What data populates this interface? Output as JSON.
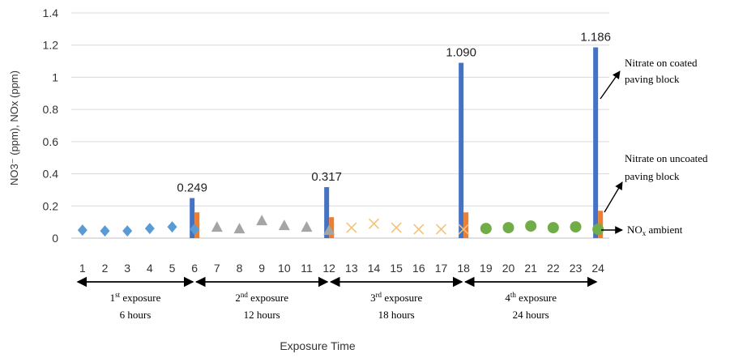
{
  "chart_data": {
    "type": "bar",
    "xlabel": "Exposure Time",
    "ylabel": "NO3⁻ (ppm), NOx (ppm)",
    "ylim": [
      0,
      1.4
    ],
    "yticks": [
      "0",
      "0.2",
      "0.4",
      "0.6",
      "0.8",
      "1",
      "1.2",
      "1.4"
    ],
    "grid": true,
    "x": [
      1,
      2,
      3,
      4,
      5,
      6,
      7,
      8,
      9,
      10,
      11,
      12,
      13,
      14,
      15,
      16,
      17,
      18,
      19,
      20,
      21,
      22,
      23,
      24
    ],
    "xticks": [
      "1",
      "2",
      "3",
      "4",
      "5",
      "6",
      "7",
      "8",
      "9",
      "10",
      "11",
      "12",
      "13",
      "14",
      "15",
      "16",
      "17",
      "18",
      "19",
      "20",
      "21",
      "22",
      "23",
      "24"
    ],
    "bar_series": [
      {
        "name": "Nitrate on coated paving block",
        "color": "#4472c4",
        "points": [
          {
            "x": 6,
            "value": 0.249,
            "label": "0.249"
          },
          {
            "x": 12,
            "value": 0.317,
            "label": "0.317"
          },
          {
            "x": 18,
            "value": 1.09,
            "label": "1.090"
          },
          {
            "x": 24,
            "value": 1.186,
            "label": "1.186"
          }
        ]
      },
      {
        "name": "Nitrate on uncoated paving block",
        "color": "#ed7d31",
        "points": [
          {
            "x": 6,
            "value": 0.16
          },
          {
            "x": 12,
            "value": 0.13
          },
          {
            "x": 18,
            "value": 0.16
          },
          {
            "x": 24,
            "value": 0.17
          }
        ]
      }
    ],
    "ambient_series": [
      {
        "marker": "diamond",
        "color": "#5b9bd5",
        "x": [
          1,
          2,
          3,
          4,
          5,
          6
        ],
        "values": [
          0.05,
          0.045,
          0.045,
          0.06,
          0.07,
          0.055
        ]
      },
      {
        "marker": "triangle",
        "color": "#a5a5a5",
        "x": [
          7,
          8,
          9,
          10,
          11,
          12
        ],
        "values": [
          0.07,
          0.06,
          0.11,
          0.08,
          0.07,
          0.05
        ]
      },
      {
        "marker": "x",
        "color": "#f4c17a",
        "x": [
          13,
          14,
          15,
          16,
          17,
          18
        ],
        "values": [
          0.065,
          0.09,
          0.065,
          0.055,
          0.055,
          0.055
        ]
      },
      {
        "marker": "circle",
        "color": "#70ad47",
        "x": [
          19,
          20,
          21,
          22,
          23,
          24
        ],
        "values": [
          0.06,
          0.065,
          0.075,
          0.065,
          0.07,
          0.055
        ]
      }
    ],
    "annotations": {
      "coated": "Nitrate on coated\npaving block",
      "uncoated": "Nitrate on uncoated\npaving block",
      "nox_main": "NO",
      "nox_sub": "x",
      "nox_tail": " ambient"
    },
    "exposures": [
      {
        "ord": "1",
        "sup": "st",
        "word": " exposure",
        "hours": "6 hours",
        "from": 1,
        "to": 6
      },
      {
        "ord": "2",
        "sup": "nd",
        "word": " exposure",
        "hours": "12 hours",
        "from": 6,
        "to": 12
      },
      {
        "ord": "3",
        "sup": "rd",
        "word": " exposure",
        "hours": "18 hours",
        "from": 12,
        "to": 18
      },
      {
        "ord": "4",
        "sup": "th",
        "word": " exposure",
        "hours": "24 hours",
        "from": 18,
        "to": 24
      }
    ]
  }
}
